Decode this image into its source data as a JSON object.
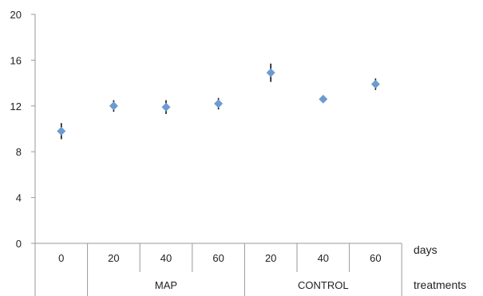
{
  "chart_data": {
    "type": "scatter",
    "title": "",
    "ylim": [
      0,
      20
    ],
    "yticks": [
      0,
      4,
      8,
      12,
      16,
      20
    ],
    "grid": false,
    "legend": "none",
    "x_level_label": "days",
    "group_level_label": "treatments",
    "categories": [
      "0",
      "20",
      "40",
      "60",
      "20",
      "40",
      "60"
    ],
    "groups": [
      {
        "label": "",
        "span": [
          0,
          0
        ]
      },
      {
        "label": "MAP",
        "span": [
          1,
          3
        ]
      },
      {
        "label": "CONTROL",
        "span": [
          4,
          6
        ]
      }
    ],
    "values": [
      9.8,
      12.0,
      11.9,
      12.2,
      14.9,
      12.6,
      13.9
    ],
    "errors": [
      0.7,
      0.5,
      0.6,
      0.5,
      0.8,
      0.3,
      0.5
    ],
    "colors": {
      "marker": "#6a9bd1",
      "errorbar": "#111111",
      "axis": "#999999"
    }
  }
}
